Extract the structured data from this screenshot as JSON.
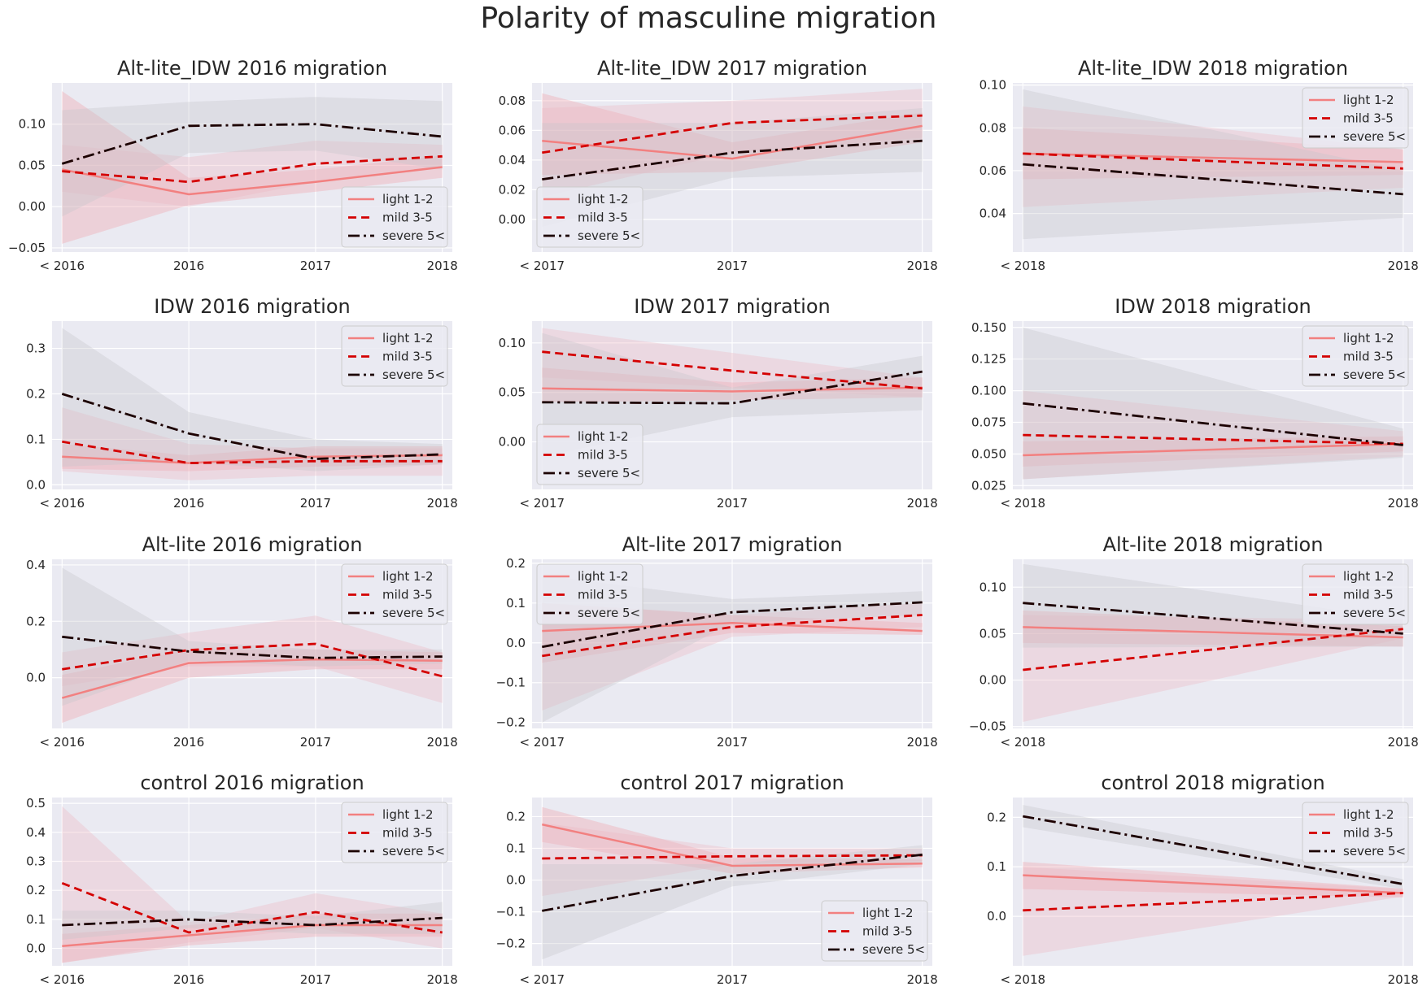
{
  "figure_title": "Polarity of masculine migration",
  "colors": {
    "plot_bg": "#eaeaf2",
    "grid": "#ffffff",
    "light": "#f28080",
    "mild": "#d40000",
    "severe": "#1c0000",
    "light_band": "#f2a0aa",
    "mild_band": "#eeb8c2",
    "severe_band": "#c6c6cc"
  },
  "legend_labels": {
    "light": "light 1-2",
    "mild": "mild 3-5",
    "severe": "severe 5<"
  },
  "chart_data": [
    {
      "type": "line",
      "title": "Alt-lite_IDW 2016 migration",
      "x": [
        "< 2016",
        "2016",
        "2017",
        "2018"
      ],
      "ylim": [
        -0.055,
        0.15
      ],
      "yticks": [
        -0.05,
        0.0,
        0.05,
        0.1
      ],
      "legend": "lower-right",
      "series": [
        {
          "name": "light 1-2",
          "values": [
            0.045,
            0.015,
            0.03,
            0.048
          ],
          "lower": [
            -0.045,
            0.002,
            0.018,
            0.035
          ],
          "upper": [
            0.14,
            0.035,
            0.045,
            0.062
          ]
        },
        {
          "name": "mild 3-5",
          "values": [
            0.043,
            0.03,
            0.052,
            0.061
          ],
          "lower": [
            0.018,
            0.0,
            0.03,
            0.048
          ],
          "upper": [
            0.075,
            0.06,
            0.08,
            0.075
          ]
        },
        {
          "name": "severe 5<",
          "values": [
            0.052,
            0.098,
            0.1,
            0.085
          ],
          "lower": [
            -0.012,
            0.065,
            0.068,
            0.045
          ],
          "upper": [
            0.117,
            0.127,
            0.133,
            0.128
          ]
        }
      ]
    },
    {
      "type": "line",
      "title": "Alt-lite_IDW 2017 migration",
      "x": [
        "< 2017",
        "2017",
        "2018"
      ],
      "ylim": [
        -0.022,
        0.092
      ],
      "yticks": [
        0.0,
        0.02,
        0.04,
        0.06,
        0.08
      ],
      "legend": "lower-left",
      "series": [
        {
          "name": "light 1-2",
          "values": [
            0.053,
            0.041,
            0.063
          ],
          "lower": [
            0.03,
            0.032,
            0.052
          ],
          "upper": [
            0.085,
            0.052,
            0.072
          ]
        },
        {
          "name": "mild 3-5",
          "values": [
            0.045,
            0.065,
            0.07
          ],
          "lower": [
            0.015,
            0.045,
            0.055
          ],
          "upper": [
            0.075,
            0.08,
            0.088
          ]
        },
        {
          "name": "severe 5<",
          "values": [
            0.027,
            0.045,
            0.053
          ],
          "lower": [
            -0.005,
            0.028,
            0.032
          ],
          "upper": [
            0.065,
            0.065,
            0.075
          ]
        }
      ]
    },
    {
      "type": "line",
      "title": "Alt-lite_IDW 2018 migration",
      "x": [
        "< 2018",
        "2018"
      ],
      "ylim": [
        0.022,
        0.101
      ],
      "yticks": [
        0.04,
        0.06,
        0.08,
        0.1
      ],
      "legend": "upper-right",
      "series": [
        {
          "name": "light 1-2",
          "values": [
            0.068,
            0.064
          ],
          "lower": [
            0.056,
            0.058
          ],
          "upper": [
            0.08,
            0.07
          ]
        },
        {
          "name": "mild 3-5",
          "values": [
            0.068,
            0.061
          ],
          "lower": [
            0.043,
            0.052
          ],
          "upper": [
            0.09,
            0.07
          ]
        },
        {
          "name": "severe 5<",
          "values": [
            0.063,
            0.049
          ],
          "lower": [
            0.028,
            0.038
          ],
          "upper": [
            0.098,
            0.06
          ]
        }
      ]
    },
    {
      "type": "line",
      "title": "IDW 2016 migration",
      "x": [
        "< 2016",
        "2016",
        "2017",
        "2018"
      ],
      "ylim": [
        -0.01,
        0.36
      ],
      "yticks": [
        0.0,
        0.1,
        0.2,
        0.3
      ],
      "legend": "upper-right",
      "series": [
        {
          "name": "light 1-2",
          "values": [
            0.062,
            0.048,
            0.062,
            0.065
          ],
          "lower": [
            0.035,
            0.03,
            0.04,
            0.045
          ],
          "upper": [
            0.09,
            0.065,
            0.085,
            0.085
          ]
        },
        {
          "name": "mild 3-5",
          "values": [
            0.095,
            0.048,
            0.052,
            0.052
          ],
          "lower": [
            0.03,
            0.01,
            0.02,
            0.02
          ],
          "upper": [
            0.17,
            0.09,
            0.08,
            0.08
          ]
        },
        {
          "name": "severe 5<",
          "values": [
            0.2,
            0.113,
            0.057,
            0.067
          ],
          "lower": [
            0.04,
            0.05,
            0.03,
            0.045
          ],
          "upper": [
            0.345,
            0.16,
            0.1,
            0.09
          ]
        }
      ]
    },
    {
      "type": "line",
      "title": "IDW 2017 migration",
      "x": [
        "< 2017",
        "2017",
        "2018"
      ],
      "ylim": [
        -0.048,
        0.122
      ],
      "yticks": [
        0.0,
        0.05,
        0.1
      ],
      "legend": "lower-left",
      "series": [
        {
          "name": "light 1-2",
          "values": [
            0.054,
            0.051,
            0.055
          ],
          "lower": [
            0.04,
            0.042,
            0.045
          ],
          "upper": [
            0.075,
            0.06,
            0.065
          ]
        },
        {
          "name": "mild 3-5",
          "values": [
            0.091,
            0.072,
            0.054
          ],
          "lower": [
            0.065,
            0.055,
            0.045
          ],
          "upper": [
            0.115,
            0.09,
            0.065
          ]
        },
        {
          "name": "severe 5<",
          "values": [
            0.04,
            0.039,
            0.071
          ],
          "lower": [
            -0.015,
            0.025,
            0.032
          ],
          "upper": [
            0.11,
            0.055,
            0.087
          ]
        }
      ]
    },
    {
      "type": "line",
      "title": "IDW 2018 migration",
      "x": [
        "< 2018",
        "2018"
      ],
      "ylim": [
        0.022,
        0.155
      ],
      "yticks": [
        0.025,
        0.05,
        0.075,
        0.1,
        0.125,
        0.15
      ],
      "legend": "upper-right",
      "series": [
        {
          "name": "light 1-2",
          "values": [
            0.049,
            0.058
          ],
          "lower": [
            0.04,
            0.052
          ],
          "upper": [
            0.06,
            0.064
          ]
        },
        {
          "name": "mild 3-5",
          "values": [
            0.065,
            0.058
          ],
          "lower": [
            0.03,
            0.048
          ],
          "upper": [
            0.1,
            0.068
          ]
        },
        {
          "name": "severe 5<",
          "values": [
            0.09,
            0.057
          ],
          "lower": [
            0.03,
            0.047
          ],
          "upper": [
            0.15,
            0.07
          ]
        }
      ]
    },
    {
      "type": "line",
      "title": "Alt-lite 2016 migration",
      "x": [
        "< 2016",
        "2016",
        "2017",
        "2018"
      ],
      "ylim": [
        -0.18,
        0.42
      ],
      "yticks": [
        0.0,
        0.2,
        0.4
      ],
      "legend": "upper-right",
      "series": [
        {
          "name": "light 1-2",
          "values": [
            -0.072,
            0.052,
            0.065,
            0.06
          ],
          "lower": [
            -0.16,
            0.0,
            0.03,
            0.03
          ],
          "upper": [
            0.01,
            0.1,
            0.1,
            0.09
          ]
        },
        {
          "name": "mild 3-5",
          "values": [
            0.03,
            0.098,
            0.12,
            0.005
          ],
          "lower": [
            -0.03,
            0.04,
            0.04,
            -0.09
          ],
          "upper": [
            0.09,
            0.16,
            0.22,
            0.09
          ]
        },
        {
          "name": "severe 5<",
          "values": [
            0.145,
            0.093,
            0.07,
            0.075
          ],
          "lower": [
            -0.1,
            0.06,
            0.04,
            0.05
          ],
          "upper": [
            0.39,
            0.13,
            0.1,
            0.1
          ]
        }
      ]
    },
    {
      "type": "line",
      "title": "Alt-lite 2017 migration",
      "x": [
        "< 2017",
        "2017",
        "2018"
      ],
      "ylim": [
        -0.215,
        0.21
      ],
      "yticks": [
        -0.2,
        -0.1,
        0.0,
        0.1,
        0.2
      ],
      "legend": "upper-left",
      "series": [
        {
          "name": "light 1-2",
          "values": [
            0.03,
            0.05,
            0.03
          ],
          "lower": [
            -0.05,
            0.025,
            0.02
          ],
          "upper": [
            0.1,
            0.07,
            0.05
          ]
        },
        {
          "name": "mild 3-5",
          "values": [
            -0.033,
            0.04,
            0.07
          ],
          "lower": [
            -0.17,
            0.015,
            0.04
          ],
          "upper": [
            0.1,
            0.07,
            0.1
          ]
        },
        {
          "name": "severe 5<",
          "values": [
            -0.01,
            0.077,
            0.102
          ],
          "lower": [
            -0.2,
            0.05,
            0.07
          ],
          "upper": [
            0.17,
            0.11,
            0.13
          ]
        }
      ]
    },
    {
      "type": "line",
      "title": "Alt-lite 2018 migration",
      "x": [
        "< 2018",
        "2018"
      ],
      "ylim": [
        -0.052,
        0.13
      ],
      "yticks": [
        -0.05,
        0.0,
        0.05,
        0.1
      ],
      "legend": "upper-right",
      "series": [
        {
          "name": "light 1-2",
          "values": [
            0.057,
            0.046
          ],
          "lower": [
            0.04,
            0.036
          ],
          "upper": [
            0.075,
            0.058
          ]
        },
        {
          "name": "mild 3-5",
          "values": [
            0.011,
            0.055
          ],
          "lower": [
            -0.045,
            0.045
          ],
          "upper": [
            0.07,
            0.065
          ]
        },
        {
          "name": "severe 5<",
          "values": [
            0.083,
            0.05
          ],
          "lower": [
            0.035,
            0.036
          ],
          "upper": [
            0.125,
            0.065
          ]
        }
      ]
    },
    {
      "type": "line",
      "title": "control 2016 migration",
      "x": [
        "< 2016",
        "2016",
        "2017",
        "2018"
      ],
      "ylim": [
        -0.06,
        0.52
      ],
      "yticks": [
        0.0,
        0.1,
        0.2,
        0.3,
        0.4,
        0.5
      ],
      "legend": "upper-right",
      "series": [
        {
          "name": "light 1-2",
          "values": [
            0.008,
            0.045,
            0.08,
            0.08
          ],
          "lower": [
            -0.05,
            0.01,
            0.04,
            0.04
          ],
          "upper": [
            0.05,
            0.08,
            0.12,
            0.12
          ]
        },
        {
          "name": "mild 3-5",
          "values": [
            0.225,
            0.055,
            0.125,
            0.055
          ],
          "lower": [
            -0.05,
            0.02,
            0.07,
            0.0
          ],
          "upper": [
            0.49,
            0.09,
            0.19,
            0.12
          ]
        },
        {
          "name": "severe 5<",
          "values": [
            0.08,
            0.1,
            0.08,
            0.105
          ],
          "lower": [
            0.03,
            0.07,
            0.05,
            0.05
          ],
          "upper": [
            0.13,
            0.13,
            0.11,
            0.16
          ]
        }
      ]
    },
    {
      "type": "line",
      "title": "control 2017 migration",
      "x": [
        "< 2017",
        "2017",
        "2018"
      ],
      "ylim": [
        -0.27,
        0.26
      ],
      "yticks": [
        -0.2,
        -0.1,
        0.0,
        0.1,
        0.2
      ],
      "legend": "lower-right",
      "series": [
        {
          "name": "light 1-2",
          "values": [
            0.175,
            0.045,
            0.052
          ],
          "lower": [
            0.12,
            0.02,
            0.04
          ],
          "upper": [
            0.23,
            0.07,
            0.065
          ]
        },
        {
          "name": "mild 3-5",
          "values": [
            0.068,
            0.075,
            0.078
          ],
          "lower": [
            -0.05,
            0.05,
            0.06
          ],
          "upper": [
            0.18,
            0.1,
            0.1
          ]
        },
        {
          "name": "severe 5<",
          "values": [
            -0.097,
            0.013,
            0.08
          ],
          "lower": [
            -0.25,
            -0.02,
            0.05
          ],
          "upper": [
            0.05,
            0.05,
            0.11
          ]
        }
      ]
    },
    {
      "type": "line",
      "title": "control 2018 migration",
      "x": [
        "< 2018",
        "2018"
      ],
      "ylim": [
        -0.1,
        0.24
      ],
      "yticks": [
        0.0,
        0.1,
        0.2
      ],
      "legend": "upper-right",
      "series": [
        {
          "name": "light 1-2",
          "values": [
            0.083,
            0.047
          ],
          "lower": [
            0.055,
            0.038
          ],
          "upper": [
            0.11,
            0.056
          ]
        },
        {
          "name": "mild 3-5",
          "values": [
            0.012,
            0.047
          ],
          "lower": [
            -0.08,
            0.04
          ],
          "upper": [
            0.1,
            0.055
          ]
        },
        {
          "name": "severe 5<",
          "values": [
            0.202,
            0.065
          ],
          "lower": [
            0.18,
            0.055
          ],
          "upper": [
            0.225,
            0.075
          ]
        }
      ]
    }
  ]
}
